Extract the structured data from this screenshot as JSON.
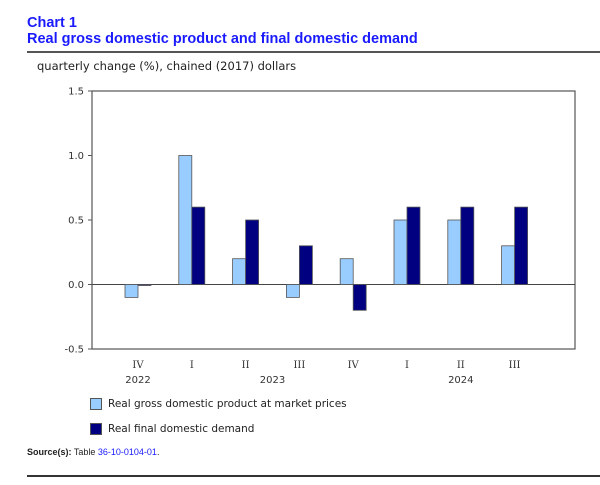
{
  "header": {
    "chart_number": "Chart 1",
    "title": "Real gross domestic product and final domestic demand",
    "unit_label": "quarterly change (%), chained (2017) dollars"
  },
  "colors": {
    "gdp": "#99ccff",
    "fdd": "#000080",
    "title": "#1a1aff"
  },
  "source": {
    "label": "Source(s):",
    "text": "Table",
    "link": "36-10-0104-01",
    "suffix": "."
  },
  "chart_data": {
    "type": "bar",
    "title": "Real gross domestic product and final domestic demand",
    "ylabel": "quarterly change (%), chained (2017) dollars",
    "xlabel": "",
    "ylim": [
      -0.5,
      1.5
    ],
    "yticks": [
      -0.5,
      0.0,
      0.5,
      1.0,
      1.5
    ],
    "ytick_labels": [
      "-0.5",
      "0.0",
      "0.5",
      "1.0",
      "1.5"
    ],
    "grid": false,
    "legend_position": "bottom-left",
    "categories": [
      "IV",
      "I",
      "II",
      "III",
      "IV",
      "I",
      "II",
      "III"
    ],
    "year_labels": [
      {
        "label": "2022",
        "index": 0
      },
      {
        "label": "2023",
        "index": 2.5
      },
      {
        "label": "2024",
        "index": 6
      }
    ],
    "series": [
      {
        "name": "Real gross domestic product at market prices",
        "values": [
          -0.1,
          1.0,
          0.2,
          -0.1,
          0.2,
          0.5,
          0.5,
          0.3
        ]
      },
      {
        "name": "Real final domestic demand",
        "values": [
          0.0,
          0.6,
          0.5,
          0.3,
          -0.2,
          0.6,
          0.6,
          0.6
        ]
      }
    ]
  }
}
